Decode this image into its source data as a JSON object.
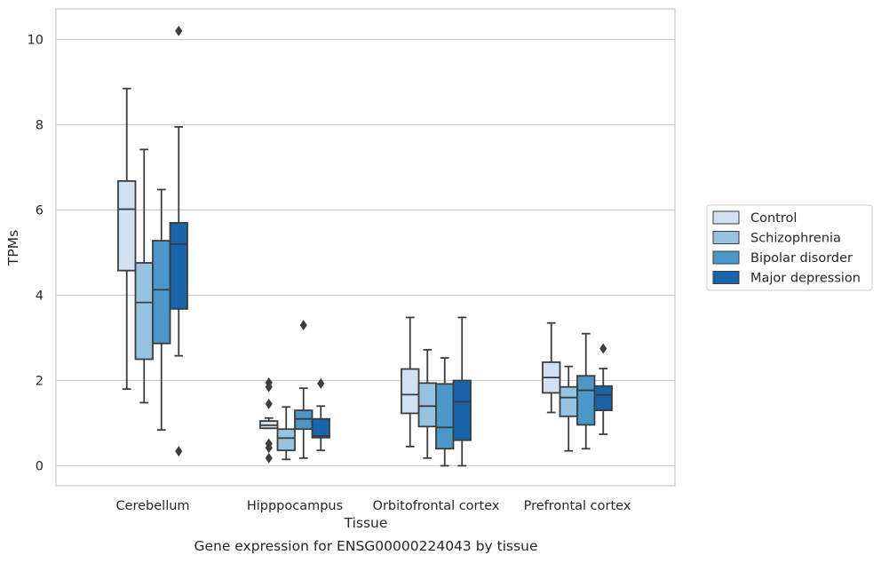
{
  "caption": "Gene expression for ENSG00000224043 by tissue",
  "chart_data": {
    "type": "box",
    "title": "",
    "xlabel": "Tissue",
    "ylabel": "TPMs",
    "ylim": [
      -0.5,
      10.7
    ],
    "yticks": [
      0,
      2,
      4,
      6,
      8,
      10
    ],
    "grid": "horizontal",
    "legend_position": "right",
    "categories": [
      "Cerebellum",
      "Hipppocampus",
      "Orbitofrontal cortex",
      "Prefrontal cortex"
    ],
    "series": [
      {
        "name": "Control",
        "color": "#d0e1f2",
        "boxes": [
          {
            "whisker_low": 1.8,
            "q1": 4.58,
            "median": 6.02,
            "q3": 6.68,
            "whisker_high": 8.85,
            "outliers": []
          },
          {
            "whisker_low": 0.88,
            "q1": 0.88,
            "median": 0.95,
            "q3": 1.05,
            "whisker_high": 1.12,
            "outliers": [
              1.95,
              1.85,
              1.45,
              0.52,
              0.42,
              0.18
            ]
          },
          {
            "whisker_low": 0.45,
            "q1": 1.23,
            "median": 1.67,
            "q3": 2.27,
            "whisker_high": 3.48,
            "outliers": []
          },
          {
            "whisker_low": 1.25,
            "q1": 1.71,
            "median": 2.07,
            "q3": 2.43,
            "whisker_high": 3.35,
            "outliers": []
          }
        ]
      },
      {
        "name": "Schizophrenia",
        "color": "#94c4df",
        "boxes": [
          {
            "whisker_low": 1.48,
            "q1": 2.5,
            "median": 3.83,
            "q3": 4.76,
            "whisker_high": 7.42,
            "outliers": []
          },
          {
            "whisker_low": 0.15,
            "q1": 0.36,
            "median": 0.65,
            "q3": 0.86,
            "whisker_high": 1.38,
            "outliers": []
          },
          {
            "whisker_low": 0.18,
            "q1": 0.92,
            "median": 1.4,
            "q3": 1.94,
            "whisker_high": 2.72,
            "outliers": []
          },
          {
            "whisker_low": 0.35,
            "q1": 1.16,
            "median": 1.6,
            "q3": 1.85,
            "whisker_high": 2.33,
            "outliers": []
          }
        ]
      },
      {
        "name": "Bipolar disorder",
        "color": "#4a98c9",
        "boxes": [
          {
            "whisker_low": 0.84,
            "q1": 2.87,
            "median": 4.13,
            "q3": 5.28,
            "whisker_high": 6.48,
            "outliers": []
          },
          {
            "whisker_low": 0.18,
            "q1": 0.86,
            "median": 1.1,
            "q3": 1.3,
            "whisker_high": 1.82,
            "outliers": [
              3.3
            ]
          },
          {
            "whisker_low": 0.0,
            "q1": 0.4,
            "median": 0.9,
            "q3": 1.92,
            "whisker_high": 2.53,
            "outliers": []
          },
          {
            "whisker_low": 0.4,
            "q1": 0.96,
            "median": 1.77,
            "q3": 2.11,
            "whisker_high": 3.1,
            "outliers": []
          }
        ]
      },
      {
        "name": "Major depression",
        "color": "#1764ab",
        "boxes": [
          {
            "whisker_low": 2.58,
            "q1": 3.68,
            "median": 5.2,
            "q3": 5.7,
            "whisker_high": 7.95,
            "outliers": [
              10.2,
              0.34
            ]
          },
          {
            "whisker_low": 0.36,
            "q1": 0.66,
            "median": 0.7,
            "q3": 1.1,
            "whisker_high": 1.4,
            "outliers": [
              1.93
            ]
          },
          {
            "whisker_low": 0.0,
            "q1": 0.6,
            "median": 1.5,
            "q3": 2.0,
            "whisker_high": 3.48,
            "outliers": []
          },
          {
            "whisker_low": 0.74,
            "q1": 1.3,
            "median": 1.66,
            "q3": 1.87,
            "whisker_high": 2.28,
            "outliers": [
              2.75
            ]
          }
        ]
      }
    ]
  }
}
